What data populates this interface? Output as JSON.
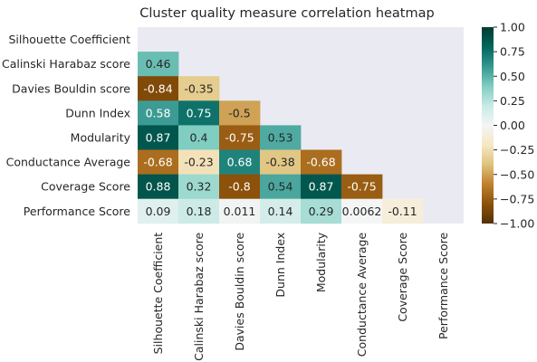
{
  "chart_data": {
    "type": "heatmap",
    "title": "Cluster quality measure correlation heatmap",
    "xlabel": "",
    "ylabel": "",
    "labels": [
      "Silhouette Coefficient",
      "Calinski Harabaz score",
      "Davies Bouldin score",
      "Dunn Index",
      "Modularity",
      "Conductance Average",
      "Coverage Score",
      "Performance Score"
    ],
    "mask": "upper-triangle-including-diagonal",
    "rows": [
      [],
      [
        "0.46"
      ],
      [
        "-0.84",
        "-0.35"
      ],
      [
        "0.58",
        "0.75",
        "-0.5"
      ],
      [
        "0.87",
        "0.4",
        "-0.75",
        "0.53"
      ],
      [
        "-0.68",
        "-0.23",
        "0.68",
        "-0.38",
        "-0.68"
      ],
      [
        "0.88",
        "0.32",
        "-0.8",
        "0.54",
        "0.87",
        "-0.75"
      ],
      [
        "0.09",
        "0.18",
        "0.011",
        "0.14",
        "0.29",
        "0.0062",
        "-0.11"
      ]
    ],
    "colorbar": {
      "vmin": -1.0,
      "vmax": 1.0,
      "ticks": [
        "1.00",
        "0.75",
        "0.50",
        "0.25",
        "0.00",
        "−0.25",
        "−0.50",
        "−0.75",
        "−1.00"
      ],
      "tick_values": [
        1.0,
        0.75,
        0.5,
        0.25,
        0.0,
        -0.25,
        -0.5,
        -0.75,
        -1.0
      ],
      "colormap": "BrBG",
      "colormap_stops": [
        "#543005",
        "#8c510a",
        "#bf812d",
        "#dfc27d",
        "#f6e8c3",
        "#f5f5f5",
        "#c7eae5",
        "#80cdc1",
        "#35978f",
        "#01665e",
        "#003c30"
      ]
    },
    "background_color": "#eaeaf2",
    "grid": false
  }
}
